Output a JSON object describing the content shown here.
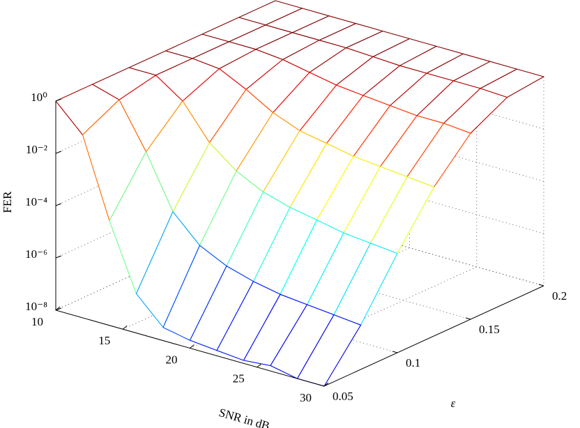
{
  "chart_data": {
    "type": "surface",
    "x_label": "SNR in dB",
    "y_label": "ε",
    "z_label": "FER",
    "x": [
      10,
      12,
      14,
      16,
      18,
      20,
      22,
      24,
      26,
      28,
      30
    ],
    "y": [
      0.05,
      0.075,
      0.1,
      0.125,
      0.15,
      0.175,
      0.2
    ],
    "values": [
      [
        1,
        1,
        1,
        1,
        1,
        1,
        1
      ],
      [
        0.1,
        0.5,
        1,
        1,
        1,
        1,
        1
      ],
      [
        0.0001,
        0.01,
        0.2,
        0.79,
        1,
        1,
        1
      ],
      [
        3.2e-07,
        0.0001,
        0.01,
        0.25,
        0.79,
        1,
        1
      ],
      [
        3.2e-08,
        1e-05,
        0.0016,
        0.063,
        0.5,
        1,
        1
      ],
      [
        2e-08,
        3.2e-06,
        0.0005,
        0.025,
        0.32,
        0.89,
        1
      ],
      [
        1.6e-08,
        1.6e-06,
        0.00025,
        0.016,
        0.25,
        0.79,
        1
      ],
      [
        1.3e-08,
        1e-06,
        0.00016,
        0.01,
        0.2,
        0.79,
        1
      ],
      [
        1.6e-08,
        7.9e-07,
        0.0001,
        0.0079,
        0.16,
        0.79,
        1
      ],
      [
        1e-08,
        6.3e-07,
        7.9e-05,
        0.0063,
        0.16,
        0.79,
        1
      ],
      [
        1e-08,
        5e-07,
        6.3e-05,
        0.005,
        0.13,
        0.71,
        1
      ]
    ],
    "xlim": [
      10,
      30
    ],
    "ylim": [
      0.05,
      0.2
    ],
    "zlim": [
      1e-08,
      1
    ],
    "zscale": "log",
    "xticks": [
      10,
      15,
      20,
      25,
      30
    ],
    "yticks": [
      0.05,
      0.1,
      0.15,
      0.2
    ],
    "zticks": [
      {
        "value": 1e-08,
        "label": "10⁻⁸"
      },
      {
        "value": 1e-06,
        "label": "10⁻⁶"
      },
      {
        "value": 0.0001,
        "label": "10⁻⁴"
      },
      {
        "value": 0.01,
        "label": "10⁻²"
      },
      {
        "value": 1,
        "label": "10⁰"
      }
    ],
    "grid": true,
    "colormap": "jet"
  }
}
